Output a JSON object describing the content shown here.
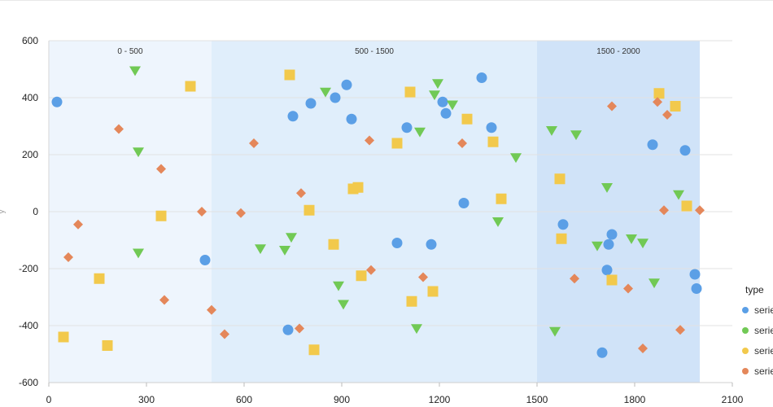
{
  "chart_data": {
    "type": "scatter",
    "title": "",
    "xlabel": "",
    "ylabel": "y",
    "xlim": [
      0,
      2100
    ],
    "ylim": [
      -600,
      600
    ],
    "x_ticks": [
      0,
      300,
      600,
      900,
      1200,
      1500,
      1800,
      2100
    ],
    "y_ticks": [
      -600,
      -400,
      -200,
      0,
      200,
      400,
      600
    ],
    "grid": true,
    "bands": [
      {
        "label": "0 - 500",
        "from": 0,
        "to": 500,
        "color": "#eef5fd"
      },
      {
        "label": "500 - 1500",
        "from": 500,
        "to": 1500,
        "color": "#e0eefb"
      },
      {
        "label": "1500 - 2000",
        "from": 1500,
        "to": 2000,
        "color": "#d0e3f8"
      }
    ],
    "legend": {
      "title": "type",
      "position": "right"
    },
    "series": [
      {
        "name": "serie",
        "marker": "circle",
        "color": "#5b9fe6",
        "points": [
          [
            25,
            385
          ],
          [
            480,
            -170
          ],
          [
            735,
            -415
          ],
          [
            750,
            335
          ],
          [
            805,
            380
          ],
          [
            880,
            400
          ],
          [
            915,
            445
          ],
          [
            930,
            325
          ],
          [
            1070,
            -110
          ],
          [
            1100,
            295
          ],
          [
            1175,
            -115
          ],
          [
            1210,
            385
          ],
          [
            1220,
            345
          ],
          [
            1275,
            30
          ],
          [
            1330,
            470
          ],
          [
            1360,
            295
          ],
          [
            1580,
            -45
          ],
          [
            1700,
            -495
          ],
          [
            1715,
            -205
          ],
          [
            1720,
            -115
          ],
          [
            1730,
            -80
          ],
          [
            1855,
            235
          ],
          [
            1955,
            215
          ],
          [
            1985,
            -220
          ],
          [
            1990,
            -270
          ]
        ]
      },
      {
        "name": "serie",
        "marker": "triangle",
        "color": "#71c955",
        "points": [
          [
            265,
            495
          ],
          [
            275,
            210
          ],
          [
            275,
            -145
          ],
          [
            650,
            -130
          ],
          [
            725,
            -135
          ],
          [
            745,
            -90
          ],
          [
            850,
            420
          ],
          [
            890,
            -260
          ],
          [
            905,
            -325
          ],
          [
            1130,
            -410
          ],
          [
            1140,
            280
          ],
          [
            1185,
            410
          ],
          [
            1195,
            450
          ],
          [
            1240,
            375
          ],
          [
            1380,
            -35
          ],
          [
            1435,
            190
          ],
          [
            1545,
            285
          ],
          [
            1555,
            -420
          ],
          [
            1620,
            270
          ],
          [
            1685,
            -120
          ],
          [
            1715,
            85
          ],
          [
            1790,
            -95
          ],
          [
            1825,
            -110
          ],
          [
            1860,
            -250
          ],
          [
            1935,
            60
          ]
        ]
      },
      {
        "name": "serie",
        "marker": "square",
        "color": "#f2c94c",
        "points": [
          [
            45,
            -440
          ],
          [
            155,
            -235
          ],
          [
            180,
            -470
          ],
          [
            345,
            -15
          ],
          [
            435,
            440
          ],
          [
            740,
            480
          ],
          [
            800,
            5
          ],
          [
            815,
            -485
          ],
          [
            875,
            -115
          ],
          [
            935,
            80
          ],
          [
            950,
            85
          ],
          [
            960,
            -225
          ],
          [
            1070,
            240
          ],
          [
            1110,
            420
          ],
          [
            1115,
            -315
          ],
          [
            1180,
            -280
          ],
          [
            1285,
            325
          ],
          [
            1365,
            245
          ],
          [
            1390,
            45
          ],
          [
            1570,
            115
          ],
          [
            1575,
            -95
          ],
          [
            1730,
            -240
          ],
          [
            1875,
            415
          ],
          [
            1925,
            370
          ],
          [
            1960,
            20
          ]
        ]
      },
      {
        "name": "serie",
        "marker": "diamond",
        "color": "#e4875a",
        "points": [
          [
            60,
            -160
          ],
          [
            90,
            -45
          ],
          [
            215,
            290
          ],
          [
            345,
            150
          ],
          [
            355,
            -310
          ],
          [
            470,
            0
          ],
          [
            500,
            -345
          ],
          [
            540,
            -430
          ],
          [
            590,
            -5
          ],
          [
            630,
            240
          ],
          [
            770,
            -410
          ],
          [
            775,
            65
          ],
          [
            985,
            250
          ],
          [
            990,
            -205
          ],
          [
            1150,
            -230
          ],
          [
            1270,
            240
          ],
          [
            1615,
            -235
          ],
          [
            1730,
            370
          ],
          [
            1780,
            -270
          ],
          [
            1825,
            -480
          ],
          [
            1870,
            385
          ],
          [
            1890,
            5
          ],
          [
            1900,
            340
          ],
          [
            1940,
            -415
          ],
          [
            2000,
            5
          ]
        ]
      }
    ]
  }
}
